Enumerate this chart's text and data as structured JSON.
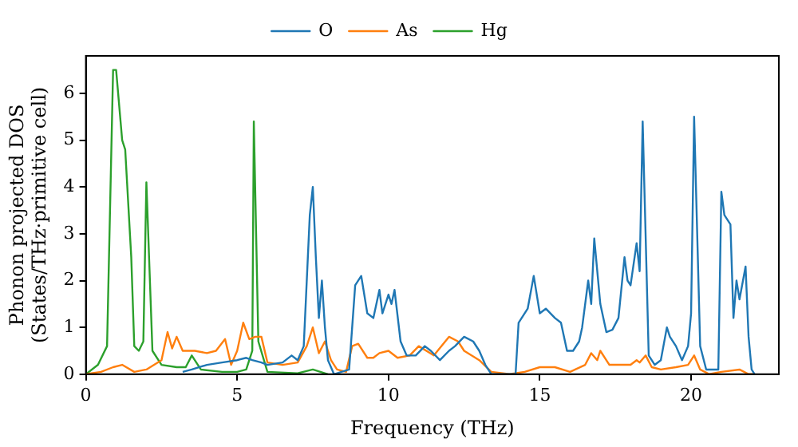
{
  "chart_data": {
    "type": "line",
    "xlabel": "Frequency (THz)",
    "ylabel": "Phonon projected DOS\n(States/THz·primitive cell)",
    "xlim": [
      0,
      22.9
    ],
    "ylim": [
      0,
      6.8
    ],
    "xticks": [
      0,
      5,
      10,
      15,
      20
    ],
    "yticks": [
      0,
      1,
      2,
      3,
      4,
      5,
      6
    ],
    "legend": "top",
    "grid": false,
    "marker": "none",
    "line_style": "solid",
    "series": [
      {
        "name": "O",
        "color": "#1f77b4",
        "x": [
          3.2,
          3.5,
          4,
          4.5,
          5,
          5.3,
          5.5,
          5.8,
          6,
          6.5,
          6.8,
          7,
          7.2,
          7.4,
          7.5,
          7.6,
          7.7,
          7.8,
          7.9,
          8,
          8.2,
          8.7,
          8.9,
          9.1,
          9.3,
          9.5,
          9.7,
          9.8,
          10,
          10.1,
          10.2,
          10.4,
          10.6,
          10.9,
          11.2,
          11.4,
          11.7,
          12,
          12.2,
          12.5,
          12.8,
          13,
          13.2,
          13.4,
          14.2,
          14.3,
          14.6,
          14.8,
          15,
          15.2,
          15.5,
          15.7,
          15.9,
          16.1,
          16.3,
          16.4,
          16.6,
          16.7,
          16.8,
          17,
          17.2,
          17.4,
          17.6,
          17.8,
          17.9,
          18,
          18.2,
          18.3,
          18.4,
          18.6,
          18.8,
          19,
          19.2,
          19.3,
          19.5,
          19.7,
          19.9,
          20,
          20.1,
          20.3,
          20.5,
          20.9,
          21,
          21.1,
          21.3,
          21.4,
          21.5,
          21.6,
          21.8,
          21.9,
          22,
          22.1
        ],
        "values": [
          0.05,
          0.1,
          0.2,
          0.25,
          0.3,
          0.35,
          0.3,
          0.25,
          0.2,
          0.25,
          0.4,
          0.3,
          0.6,
          3.4,
          4,
          2.5,
          1.2,
          2,
          1,
          0.3,
          0,
          0.1,
          1.9,
          2.1,
          1.3,
          1.2,
          1.8,
          1.3,
          1.7,
          1.5,
          1.8,
          0.7,
          0.4,
          0.4,
          0.6,
          0.5,
          0.3,
          0.5,
          0.6,
          0.8,
          0.7,
          0.5,
          0.2,
          0,
          0,
          1.1,
          1.4,
          2.1,
          1.3,
          1.4,
          1.2,
          1.1,
          0.5,
          0.5,
          0.7,
          1,
          2,
          1.5,
          2.9,
          1.5,
          0.9,
          0.95,
          1.2,
          2.5,
          2,
          1.9,
          2.8,
          2.2,
          5.4,
          0.4,
          0.2,
          0.3,
          1,
          0.8,
          0.6,
          0.3,
          0.6,
          1.3,
          5.5,
          0.6,
          0.1,
          0.1,
          3.9,
          3.4,
          3.2,
          1.2,
          2,
          1.6,
          2.3,
          0.8,
          0.1,
          0
        ]
      },
      {
        "name": "As",
        "color": "#ff7f0e",
        "x": [
          0,
          0.5,
          0.9,
          1.2,
          1.6,
          2,
          2.5,
          2.7,
          2.85,
          3,
          3.2,
          3.6,
          4,
          4.3,
          4.6,
          4.8,
          5,
          5.2,
          5.4,
          5.6,
          5.8,
          6,
          6.5,
          7,
          7.3,
          7.5,
          7.7,
          7.9,
          8.1,
          8.3,
          8.6,
          8.8,
          9,
          9.3,
          9.5,
          9.7,
          10,
          10.3,
          10.7,
          11,
          11.5,
          12,
          12.3,
          12.5,
          13,
          13.4,
          14,
          14.5,
          15,
          15.5,
          16,
          16.5,
          16.7,
          16.9,
          17,
          17.3,
          17.7,
          18,
          18.2,
          18.3,
          18.5,
          18.7,
          19,
          19.5,
          19.9,
          20.1,
          20.3,
          20.6,
          21,
          21.6,
          21.9,
          22.1
        ],
        "values": [
          0,
          0.05,
          0.15,
          0.2,
          0.05,
          0.1,
          0.3,
          0.9,
          0.55,
          0.8,
          0.5,
          0.5,
          0.45,
          0.5,
          0.75,
          0.2,
          0.5,
          1.1,
          0.75,
          0.8,
          0.8,
          0.25,
          0.2,
          0.25,
          0.6,
          1,
          0.45,
          0.7,
          0.3,
          0.1,
          0.05,
          0.6,
          0.65,
          0.35,
          0.35,
          0.45,
          0.5,
          0.35,
          0.4,
          0.6,
          0.4,
          0.8,
          0.7,
          0.5,
          0.3,
          0.05,
          0,
          0.05,
          0.15,
          0.15,
          0.05,
          0.2,
          0.45,
          0.3,
          0.5,
          0.2,
          0.2,
          0.2,
          0.3,
          0.25,
          0.4,
          0.15,
          0.1,
          0.15,
          0.2,
          0.4,
          0.1,
          0,
          0.05,
          0.1,
          0,
          0
        ]
      },
      {
        "name": "Hg",
        "color": "#2ca02c",
        "x": [
          0,
          0.4,
          0.7,
          0.9,
          1,
          1.2,
          1.3,
          1.5,
          1.6,
          1.75,
          1.9,
          2,
          2.2,
          2.5,
          3,
          3.3,
          3.5,
          3.8,
          4.5,
          5,
          5.3,
          5.5,
          5.55,
          5.7,
          6,
          7,
          7.5,
          8
        ],
        "values": [
          0,
          0.2,
          0.6,
          6.5,
          6.5,
          5,
          4.8,
          2.5,
          0.6,
          0.5,
          0.7,
          4.1,
          0.5,
          0.2,
          0.15,
          0.15,
          0.4,
          0.1,
          0.05,
          0.05,
          0.1,
          0.5,
          5.4,
          0.7,
          0.05,
          0.02,
          0.1,
          0
        ]
      }
    ]
  }
}
